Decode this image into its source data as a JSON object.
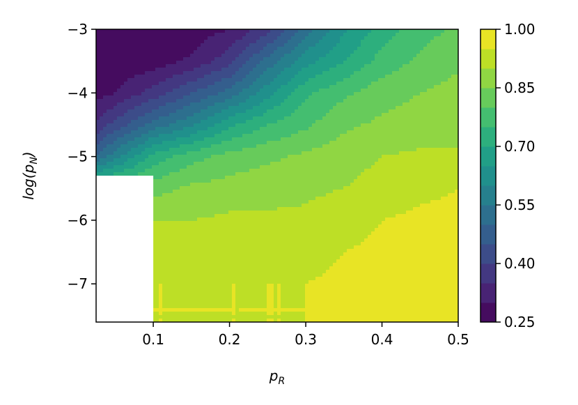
{
  "chart_data": {
    "type": "heatmap",
    "subtype": "filled-contour",
    "title": "",
    "xlabel": "p_R",
    "ylabel": "log(p_N)",
    "xlabel_parts": {
      "base": "p",
      "sub": "R"
    },
    "ylabel_parts": {
      "pre": "log(",
      "base": "p",
      "sub": "N",
      "post": ")"
    },
    "xlim": [
      0.025,
      0.5
    ],
    "ylim": [
      -7.6,
      -3
    ],
    "x_ticks": [
      0.1,
      0.2,
      0.3,
      0.4,
      0.5
    ],
    "x_tick_labels": [
      "0.1",
      "0.2",
      "0.3",
      "0.4",
      "0.5"
    ],
    "y_ticks": [
      -3,
      -4,
      -5,
      -6,
      -7
    ],
    "y_tick_labels": [
      "−3",
      "−4",
      "−5",
      "−6",
      "−7"
    ],
    "colormap": "viridis",
    "colorbar": {
      "min": 0.25,
      "max": 1.0,
      "levels": 15,
      "ticks": [
        0.25,
        0.4,
        0.55,
        0.7,
        0.85,
        1.0
      ],
      "tick_labels": [
        "0.25",
        "0.40",
        "0.55",
        "0.70",
        "0.85",
        "1.00"
      ]
    },
    "masked_region": {
      "x": [
        0.025,
        0.1
      ],
      "y": [
        -7.6,
        -5.3
      ]
    },
    "x": [
      0.025,
      0.05,
      0.1,
      0.15,
      0.2,
      0.25,
      0.3,
      0.35,
      0.4,
      0.45,
      0.5
    ],
    "y": [
      -7.6,
      -7,
      -6.5,
      -6,
      -5.5,
      -5,
      -4.5,
      -4,
      -3.5,
      -3
    ],
    "z": [
      [
        0.95,
        0.95,
        0.95,
        0.95,
        0.95,
        0.95,
        0.95,
        0.96,
        0.96,
        0.96,
        0.96
      ],
      [
        0.95,
        0.95,
        0.95,
        0.95,
        0.95,
        0.95,
        0.95,
        0.96,
        0.96,
        0.96,
        0.96
      ],
      [
        0.93,
        0.93,
        0.93,
        0.92,
        0.93,
        0.93,
        0.93,
        0.95,
        0.96,
        0.96,
        0.96
      ],
      [
        0.89,
        0.89,
        0.9,
        0.9,
        0.91,
        0.91,
        0.91,
        0.93,
        0.95,
        0.96,
        0.96
      ],
      [
        0.8,
        0.8,
        0.83,
        0.86,
        0.87,
        0.88,
        0.89,
        0.9,
        0.92,
        0.94,
        0.95
      ],
      [
        0.5,
        0.58,
        0.72,
        0.78,
        0.82,
        0.84,
        0.86,
        0.88,
        0.9,
        0.91,
        0.91
      ],
      [
        0.36,
        0.42,
        0.52,
        0.59,
        0.69,
        0.75,
        0.79,
        0.84,
        0.86,
        0.87,
        0.88
      ],
      [
        0.28,
        0.3,
        0.37,
        0.45,
        0.52,
        0.63,
        0.74,
        0.79,
        0.83,
        0.85,
        0.87
      ],
      [
        0.26,
        0.26,
        0.27,
        0.31,
        0.38,
        0.52,
        0.63,
        0.7,
        0.77,
        0.81,
        0.84
      ],
      [
        0.25,
        0.25,
        0.25,
        0.27,
        0.3,
        0.38,
        0.53,
        0.64,
        0.72,
        0.78,
        0.81
      ]
    ]
  }
}
